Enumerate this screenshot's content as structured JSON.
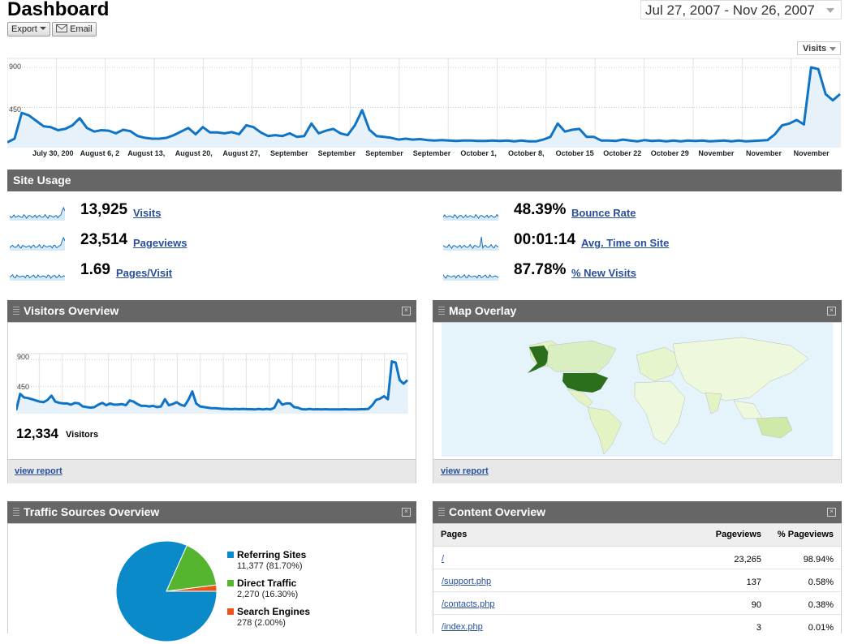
{
  "header": {
    "title": "Dashboard",
    "export_label": "Export",
    "email_label": "Email",
    "date_range": "Jul 27, 2007 - Nov 26, 2007",
    "metric_select": "Visits"
  },
  "main_chart": {
    "y_labels": [
      "900",
      "450"
    ],
    "x_ticks": [
      "July 30, 200",
      "August 6, 2",
      "August 13,",
      "August 20,",
      "August 27,",
      "September",
      "September",
      "September",
      "September",
      "October 1,",
      "October 8,",
      "October 15",
      "October 22",
      "October 29",
      "November",
      "November",
      "November"
    ],
    "values": [
      60,
      100,
      390,
      360,
      300,
      240,
      230,
      195,
      210,
      250,
      330,
      220,
      180,
      195,
      190,
      160,
      200,
      185,
      130,
      110,
      100,
      100,
      110,
      140,
      180,
      220,
      150,
      230,
      170,
      170,
      160,
      175,
      150,
      250,
      230,
      170,
      130,
      140,
      130,
      160,
      120,
      130,
      270,
      160,
      190,
      210,
      160,
      140,
      250,
      420,
      200,
      130,
      120,
      110,
      90,
      100,
      90,
      95,
      85,
      80,
      85,
      80,
      75,
      80,
      80,
      75,
      75,
      80,
      75,
      80,
      70,
      80,
      70,
      70,
      90,
      120,
      270,
      180,
      200,
      210,
      120,
      120,
      80,
      80,
      75,
      90,
      80,
      70,
      85,
      75,
      80,
      70,
      80,
      70,
      80,
      75,
      80,
      70,
      75,
      80,
      70,
      80,
      70,
      75,
      80,
      85,
      150,
      250,
      270,
      310,
      260,
      900,
      880,
      600,
      530,
      600
    ],
    "ylim": [
      0,
      1000
    ],
    "color": "#0f74c5",
    "fill": "#e6f1fa"
  },
  "site_usage": {
    "title": "Site Usage",
    "metrics": [
      {
        "value": "13,925",
        "label": "Visits"
      },
      {
        "value": "23,514",
        "label": "Pageviews"
      },
      {
        "value": "1.69",
        "label": "Pages/Visit"
      },
      {
        "value": "48.39%",
        "label": "Bounce Rate"
      },
      {
        "value": "00:01:14",
        "label": "Avg. Time on Site"
      },
      {
        "value": "87.78%",
        "label": "% New Visits"
      }
    ]
  },
  "visitors_overview": {
    "title": "Visitors Overview",
    "y_labels": [
      "900",
      "450"
    ],
    "count": "12,334",
    "count_label": "Visitors",
    "view_report": "view report",
    "values": [
      60,
      330,
      270,
      260,
      240,
      220,
      200,
      190,
      230,
      300,
      200,
      180,
      170,
      170,
      150,
      180,
      170,
      120,
      110,
      100,
      110,
      150,
      180,
      140,
      170,
      150,
      150,
      160,
      140,
      220,
      200,
      160,
      130,
      130,
      120,
      130,
      110,
      120,
      240,
      140,
      160,
      190,
      150,
      130,
      230,
      370,
      170,
      120,
      110,
      100,
      90,
      90,
      85,
      80,
      80,
      75,
      80,
      75,
      80,
      75,
      75,
      70,
      80,
      70,
      80,
      70,
      100,
      230,
      150,
      170,
      170,
      110,
      100,
      75,
      70,
      80,
      70,
      75,
      70,
      75,
      70,
      70,
      70,
      70,
      75,
      70,
      70,
      70,
      75,
      75,
      80,
      140,
      230,
      250,
      290,
      240,
      870,
      850,
      560,
      500,
      560
    ],
    "ylim": [
      0,
      1000
    ]
  },
  "map_overlay": {
    "title": "Map Overlay",
    "view_report": "view report"
  },
  "traffic_sources": {
    "title": "Traffic Sources Overview",
    "chart_data": {
      "type": "pie",
      "slices": [
        {
          "name": "Referring Sites",
          "detail": "11,377 (81.70%)",
          "value": 81.7,
          "color": "#0a8ac8"
        },
        {
          "name": "Direct Traffic",
          "detail": "2,270 (16.30%)",
          "value": 16.3,
          "color": "#55b52e"
        },
        {
          "name": "Search Engines",
          "detail": "278 (2.00%)",
          "value": 2.0,
          "color": "#e8561a"
        }
      ]
    }
  },
  "content_overview": {
    "title": "Content Overview",
    "headers": [
      "Pages",
      "Pageviews",
      "% Pageviews"
    ],
    "rows": [
      [
        "/",
        "23,265",
        "98.94%"
      ],
      [
        "/support.php",
        "137",
        "0.58%"
      ],
      [
        "/contacts.php",
        "90",
        "0.38%"
      ],
      [
        "/index.php",
        "3",
        "0.01%"
      ]
    ]
  }
}
